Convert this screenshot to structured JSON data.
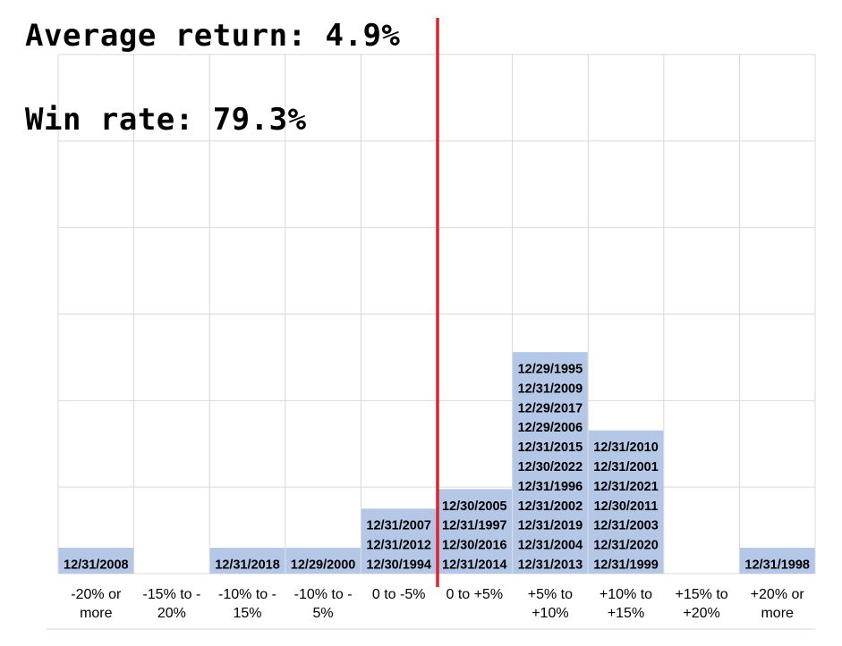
{
  "stats": {
    "average_return": "Average return: 4.9%",
    "win_rate": "Win rate: 79.3%"
  },
  "colors": {
    "box_fill": "#b4c7e7",
    "box_text": "#000000",
    "grid": "#d9d9d9",
    "marker_line": "#e0242c"
  },
  "chart_data": {
    "type": "table",
    "title": "",
    "xlabel": "",
    "ylabel": "",
    "grid": true,
    "categories": [
      "-20% or more",
      "-15% to - 20%",
      "-10% to - 15%",
      "-10% to - 5%",
      "0 to -5%",
      "0 to +5%",
      "+5% to +10%",
      "+10% to +15%",
      "+15% to +20%",
      "+20% or more"
    ],
    "category_lines": [
      [
        "-20% or",
        "more"
      ],
      [
        "-15% to -",
        "20%"
      ],
      [
        "-10% to -",
        "15%"
      ],
      [
        "-10% to -",
        "5%"
      ],
      [
        "0 to -5%"
      ],
      [
        "0 to +5%"
      ],
      [
        "+5% to",
        "+10%"
      ],
      [
        "+10% to",
        "+15%"
      ],
      [
        "+15% to",
        "+20%"
      ],
      [
        "+20% or",
        "more"
      ]
    ],
    "counts": [
      1,
      0,
      1,
      1,
      3,
      4,
      11,
      7,
      0,
      1
    ],
    "dates": [
      [
        "12/31/2008"
      ],
      [],
      [
        "12/31/2018"
      ],
      [
        "12/29/2000"
      ],
      [
        "12/31/2007",
        "12/31/2012",
        "12/30/1994"
      ],
      [
        "12/30/2005",
        "12/31/1997",
        "12/30/2016",
        "12/31/2014"
      ],
      [
        "12/29/1995",
        "12/31/2009",
        "12/29/2017",
        "12/29/2006",
        "12/31/2015",
        "12/30/2022",
        "12/31/1996",
        "12/31/2002",
        "12/31/2019",
        "12/31/2004",
        "12/31/2013"
      ],
      [
        "12/31/2010",
        "12/31/2001",
        "12/31/2021",
        "12/30/2011",
        "12/31/2003",
        "12/31/2020",
        "12/31/1999"
      ],
      [],
      [
        "12/31/1998"
      ]
    ],
    "y_range": [
      0,
      26
    ],
    "marker_line_between": [
      "0 to -5%",
      "0 to +5%"
    ]
  }
}
